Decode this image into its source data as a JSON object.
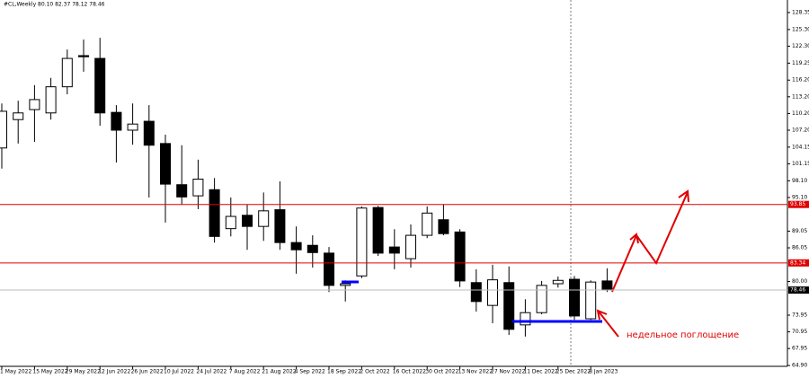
{
  "chart_data": {
    "type": "candlestick",
    "title": "#CL,Weekly 80.10 82.37 78.12 78.46",
    "annotation": "недельное поглощение",
    "categories": [
      "1 May 2022",
      null,
      "15 May 2022",
      null,
      "29 May 2022",
      null,
      "12 Jun 2022",
      null,
      "26 Jun 2022",
      null,
      "10 Jul 2022",
      null,
      "24 Jul 2022",
      null,
      "7 Aug 2022",
      null,
      "21 Aug 2022",
      null,
      "4 Sep 2022",
      null,
      "18 Sep 2022",
      null,
      "2 Oct 2022",
      null,
      "16 Oct 2022",
      null,
      "30 Oct 2022",
      null,
      "13 Nov 2022",
      null,
      "27 Nov 2022",
      null,
      "11 Dec 2022",
      null,
      "25 Dec 2022",
      null,
      "8 Jan 2023",
      null
    ],
    "open": [
      104.0,
      109.1,
      110.9,
      110.3,
      115.0,
      120.6,
      120.1,
      110.4,
      107.2,
      108.8,
      104.8,
      97.4,
      95.4,
      96.5,
      89.5,
      91.9,
      89.9,
      92.9,
      87.0,
      86.5,
      85.1,
      79.3,
      81.0,
      93.3,
      86.2,
      84.1,
      88.3,
      91.1,
      88.9,
      79.8,
      75.7,
      79.8,
      72.2,
      74.4,
      79.6,
      80.4,
      73.3,
      80.1
    ],
    "high": [
      112.0,
      112.5,
      115.3,
      116.6,
      121.7,
      123.5,
      123.8,
      111.7,
      112.0,
      111.7,
      106.4,
      104.5,
      101.9,
      98.6,
      95.1,
      93.8,
      96.0,
      98.0,
      89.9,
      88.3,
      86.2,
      80.2,
      93.5,
      93.6,
      89.4,
      90.25,
      93.5,
      93.8,
      89.4,
      82.2,
      83.0,
      82.7,
      76.8,
      80.1,
      80.9,
      81.0,
      80.2,
      82.37
    ],
    "low": [
      100.3,
      104.8,
      105.1,
      109.1,
      113.65,
      117.7,
      108.0,
      101.4,
      104.6,
      95.1,
      90.6,
      93.8,
      93.0,
      87.0,
      88.1,
      85.7,
      87.3,
      85.7,
      81.4,
      82.5,
      78.1,
      76.4,
      80.6,
      84.6,
      82.2,
      82.5,
      87.8,
      88.3,
      79.0,
      74.6,
      72.5,
      70.4,
      70.1,
      74.1,
      78.9,
      73.1,
      73.1,
      78.12
    ],
    "close": [
      110.6,
      110.3,
      112.7,
      115.0,
      120.1,
      120.4,
      110.3,
      107.2,
      108.3,
      104.5,
      97.5,
      95.2,
      98.4,
      88.1,
      91.7,
      89.9,
      92.7,
      87.0,
      85.7,
      85.2,
      79.3,
      79.6,
      93.2,
      85.1,
      85.1,
      88.3,
      92.3,
      88.6,
      80.1,
      76.4,
      80.3,
      71.4,
      74.4,
      79.3,
      80.2,
      73.8,
      79.9,
      78.46
    ],
    "up_color": "#ffffff",
    "down_color": "#000000",
    "ylim": [
      64.75,
      130.6
    ],
    "yticks": [
      128.35,
      {
        "value": 125.3,
        "label": "125.30"
      },
      {
        "value": 122.3,
        "label": "122.30"
      },
      119.25,
      {
        "value": 116.2,
        "label": "116.20"
      },
      {
        "value": 113.2,
        "label": "113.20"
      },
      {
        "value": 110.2,
        "label": "110.20"
      },
      {
        "value": 107.2,
        "label": "107.20"
      },
      104.15,
      101.15,
      {
        "value": 98.1,
        "label": "98.10"
      },
      {
        "value": 95.1,
        "label": "95.10"
      },
      89.05,
      86.05,
      {
        "value": 80,
        "label": "80.00"
      },
      73.95,
      70.95,
      67.95,
      {
        "value": 64.9,
        "label": "64.90"
      }
    ],
    "hlines": [
      {
        "value": 93.85,
        "color": "#e00000"
      },
      {
        "value": 83.34,
        "color": "#e00000"
      }
    ],
    "last_price": 78.46
  }
}
